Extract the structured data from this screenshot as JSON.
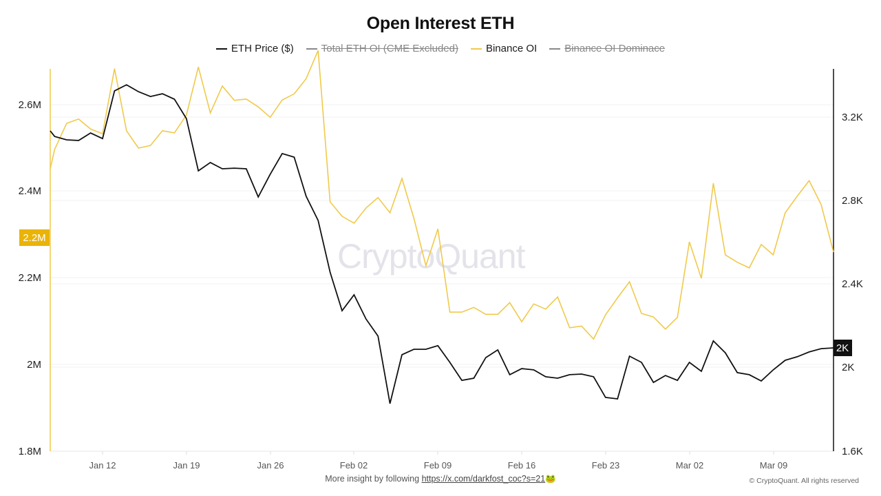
{
  "title": "Open Interest ETH",
  "legend": [
    {
      "label": "ETH Price ($)",
      "color": "#111111",
      "hidden": false
    },
    {
      "label": "Total ETH OI (CME Excluded)",
      "color": "#888888",
      "hidden": true
    },
    {
      "label": "Binance OI",
      "color": "#f0c94a",
      "hidden": false
    },
    {
      "label": "Binance OI Dominace",
      "color": "#888888",
      "hidden": true
    }
  ],
  "watermark": "CryptoQuant",
  "footer": {
    "prefix": "More insight by following ",
    "link": "https://x.com/darkfost_coc?s=21",
    "emoji": "🐸",
    "copyright": "© CryptoQuant. All rights reserved"
  },
  "left_axis": {
    "ticks": [
      "2.6M",
      "2.4M",
      "2.2M",
      "2M",
      "1.8M"
    ],
    "badge": "2.2M",
    "badge_color": "#eab308"
  },
  "right_axis": {
    "ticks": [
      "3.2K",
      "2.8K",
      "2.4K",
      "2K",
      "1.6K"
    ],
    "badge": "2K",
    "badge_color": "#111111"
  },
  "chart_data": {
    "type": "line",
    "title": "Open Interest ETH",
    "xlabel": "",
    "ylabel_left": "Binance OI",
    "ylabel_right": "ETH Price ($)",
    "ylim_left": [
      1800000,
      2680000
    ],
    "ylim_right": [
      1600,
      3430
    ],
    "grid": true,
    "legend_position": "top",
    "x_ticks": [
      "Jan 12",
      "Jan 19",
      "Jan 26",
      "Feb 02",
      "Feb 09",
      "Feb 16",
      "Feb 23",
      "Mar 02",
      "Mar 09"
    ],
    "x": [
      "Jan 08",
      "Jan 09",
      "Jan 10",
      "Jan 11",
      "Jan 12",
      "Jan 13",
      "Jan 14",
      "Jan 15",
      "Jan 16",
      "Jan 17",
      "Jan 18",
      "Jan 19",
      "Jan 20",
      "Jan 21",
      "Jan 22",
      "Jan 23",
      "Jan 24",
      "Jan 25",
      "Jan 26",
      "Jan 27",
      "Jan 28",
      "Jan 29",
      "Jan 30",
      "Jan 31",
      "Feb 01",
      "Feb 02",
      "Feb 03",
      "Feb 04",
      "Feb 05",
      "Feb 06",
      "Feb 07",
      "Feb 08",
      "Feb 09",
      "Feb 10",
      "Feb 11",
      "Feb 12",
      "Feb 13",
      "Feb 14",
      "Feb 15",
      "Feb 16",
      "Feb 17",
      "Feb 18",
      "Feb 19",
      "Feb 20",
      "Feb 21",
      "Feb 22",
      "Feb 23",
      "Feb 24",
      "Feb 25",
      "Feb 26",
      "Feb 27",
      "Feb 28",
      "Mar 01",
      "Mar 02",
      "Mar 03",
      "Mar 04",
      "Mar 05",
      "Mar 06",
      "Mar 07",
      "Mar 08",
      "Mar 09",
      "Mar 10",
      "Mar 11",
      "Mar 12",
      "Mar 13"
    ],
    "series": [
      {
        "name": "Binance OI",
        "axis": "left",
        "color": "#f0c94a",
        "values": [
          2497000,
          2557000,
          2567000,
          2544000,
          2533000,
          2683000,
          2540000,
          2500000,
          2506000,
          2540000,
          2535000,
          2576000,
          2687000,
          2581000,
          2643000,
          2610000,
          2613000,
          2595000,
          2571000,
          2611000,
          2625000,
          2660000,
          2725000,
          2376000,
          2343000,
          2327000,
          2362000,
          2386000,
          2351000,
          2430000,
          2338000,
          2229000,
          2314000,
          2122000,
          2122000,
          2133000,
          2117000,
          2117000,
          2144000,
          2100000,
          2141000,
          2129000,
          2157000,
          2086000,
          2090000,
          2060000,
          2116000,
          2155000,
          2192000,
          2119000,
          2111000,
          2083000,
          2110000,
          2284000,
          2200000,
          2419000,
          2254000,
          2237000,
          2224000,
          2278000,
          2254000,
          2351000,
          2389000,
          2425000,
          2370000
        ]
      },
      {
        "name": "ETH Price ($)",
        "axis": "right",
        "color": "#111111",
        "values": [
          3107,
          3091,
          3088,
          3124,
          3097,
          3326,
          3355,
          3322,
          3299,
          3312,
          3286,
          3193,
          2942,
          2982,
          2952,
          2955,
          2952,
          2817,
          2926,
          3025,
          3008,
          2820,
          2704,
          2456,
          2271,
          2347,
          2231,
          2149,
          1825,
          2060,
          2086,
          2086,
          2103,
          2023,
          1937,
          1947,
          2046,
          2083,
          1964,
          1993,
          1987,
          1954,
          1947,
          1964,
          1967,
          1954,
          1855,
          1848,
          2053,
          2023,
          1927,
          1960,
          1937,
          2023,
          1980,
          2126,
          2069,
          1974,
          1964,
          1934,
          1987,
          2033,
          2050,
          2073,
          2089
        ]
      }
    ]
  }
}
